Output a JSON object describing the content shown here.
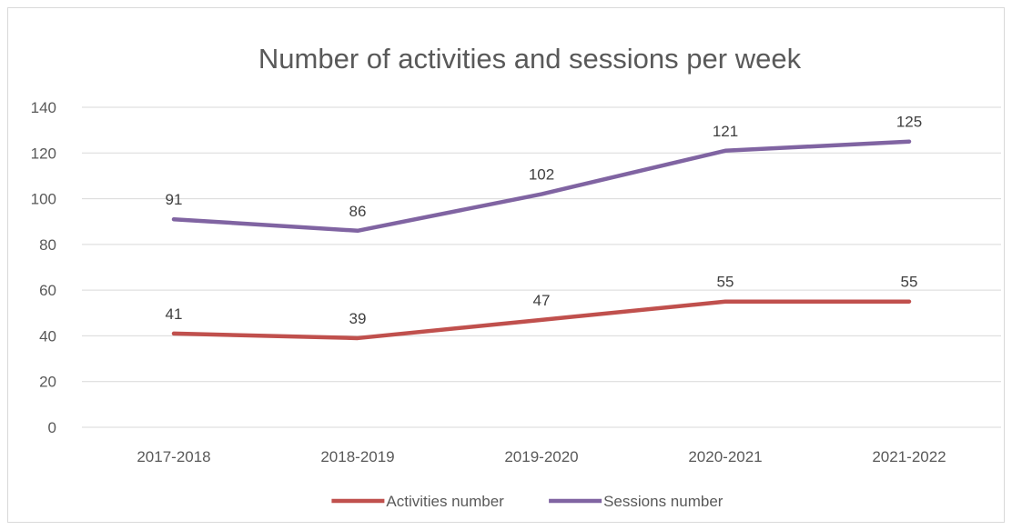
{
  "chart_data": {
    "type": "line",
    "title": "Number of activities and sessions per week",
    "xlabel": "",
    "ylabel": "",
    "categories": [
      "2017-2018",
      "2018-2019",
      "2019-2020",
      "2020-2021",
      "2021-2022"
    ],
    "ylim": [
      0,
      140
    ],
    "yticks": [
      0,
      20,
      40,
      60,
      80,
      100,
      120,
      140
    ],
    "grid": true,
    "legend": "bottom",
    "series": [
      {
        "name": "Activities number",
        "color": "#c0504d",
        "values": [
          41,
          39,
          47,
          55,
          55
        ]
      },
      {
        "name": "Sessions number",
        "color": "#8064a2",
        "values": [
          91,
          86,
          102,
          121,
          125
        ]
      }
    ]
  }
}
